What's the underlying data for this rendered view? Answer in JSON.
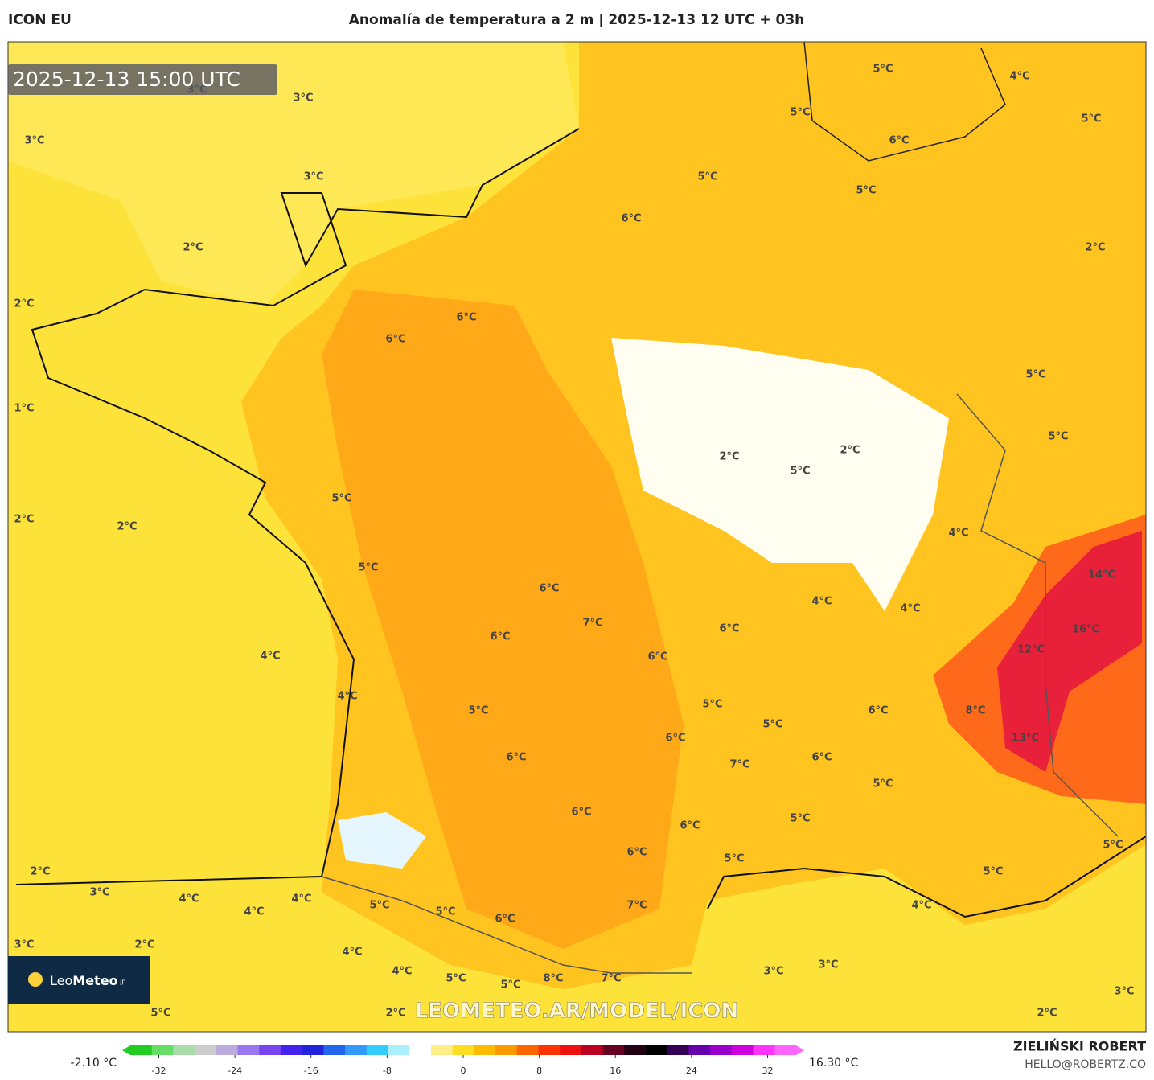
{
  "header": {
    "model": "ICON EU",
    "title": "Anomalía de temperatura a 2 m | 2025-12-13 12 UTC + 03h",
    "timestamp": "2025-12-13 15:00 UTC"
  },
  "map_labels": [
    "3°C",
    "3°C",
    "3°C",
    "3°C",
    "2°C",
    "2°C",
    "1°C",
    "2°C",
    "2°C",
    "6°C",
    "6°C",
    "5°C",
    "5°C",
    "4°C",
    "4°C",
    "5°C",
    "4°C",
    "5°C",
    "5°C",
    "6°C",
    "5°C",
    "5°C",
    "6°C",
    "2°C",
    "5°C",
    "5°C",
    "2°C",
    "5°C",
    "2°C",
    "4°C",
    "14°C",
    "6°C",
    "4°C",
    "4°C",
    "7°C",
    "6°C",
    "16°C",
    "6°C",
    "12°C",
    "6°C",
    "5°C",
    "8°C",
    "6°C",
    "5°C",
    "5°C",
    "6°C",
    "13°C",
    "6°C",
    "6°C",
    "7°C",
    "5°C",
    "6°C",
    "5°C",
    "6°C",
    "6°C",
    "5°C",
    "5°C",
    "2°C",
    "5°C",
    "3°C",
    "4°C",
    "4°C",
    "4°C",
    "5°C",
    "5°C",
    "7°C",
    "4°C",
    "6°C",
    "3°C",
    "2°C",
    "4°C",
    "4°C",
    "3°C",
    "3°C",
    "5°C",
    "5°C",
    "8°C",
    "7°C",
    "3°C",
    "5°C",
    "2°C",
    "2°C"
  ],
  "watermark": "LEOMETEO.AR/MODEL/ICON",
  "logo": {
    "name_light": "Leo",
    "name_bold": "Meteo",
    "suffix": ".jp"
  },
  "colorbar": {
    "min_label": "-2.10 °C",
    "max_label": "16.30 °C",
    "lim": [
      -35,
      35
    ],
    "ticks": [
      -32,
      -24,
      -16,
      -8,
      0,
      8,
      16,
      24,
      32
    ],
    "colors": [
      "#22cc22",
      "#66dd66",
      "#aaddaa",
      "#cccccc",
      "#bbaadd",
      "#9977ee",
      "#7744ee",
      "#4422ee",
      "#2222dd",
      "#2266ee",
      "#3399ff",
      "#33ccff",
      "#aaeeff",
      "#ffffff",
      "#ffee88",
      "#ffdd22",
      "#ffbb00",
      "#ff9900",
      "#ff6600",
      "#ff3300",
      "#ee1111",
      "#bb0022",
      "#660022",
      "#220011",
      "#000000",
      "#330055",
      "#6600aa",
      "#9900cc",
      "#cc00dd",
      "#ff33ff",
      "#ff66ff"
    ]
  },
  "credits": {
    "author": "ZIELIŃSKI ROBERT",
    "email": "HELLO@ROBERTZ.CO"
  }
}
